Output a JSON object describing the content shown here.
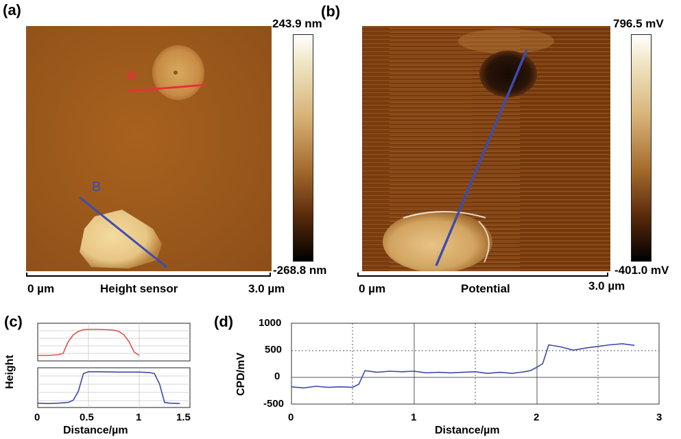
{
  "panels": {
    "a": {
      "label": "(a)",
      "colorbar_max": "243.9 nm",
      "colorbar_min": "-268.8 nm",
      "scale_left": "0 µm",
      "scale_center": "Height sensor",
      "scale_right": "3.0 µm",
      "line_a_label": "A",
      "line_b_label": "B"
    },
    "b": {
      "label": "(b)",
      "colorbar_max": "796.5 mV",
      "colorbar_min": "-401.0 mV",
      "scale_left": "0 µm",
      "scale_center": "Potential",
      "scale_right": "3.0 µm"
    },
    "c": {
      "label": "(c)",
      "ylabel": "Height",
      "xlabel": "Distance/µm",
      "xticks": [
        "0",
        "0.5",
        "1",
        "1.5"
      ]
    },
    "d": {
      "label": "(d)",
      "ylabel": "CPD/mV",
      "xlabel": "Distance/µm",
      "xticks": [
        "0",
        "1",
        "2",
        "3"
      ],
      "yticks": [
        "1000",
        "500",
        "0",
        "-500"
      ]
    }
  },
  "colors": {
    "line_a": "#e8303a",
    "line_b": "#3a4db0",
    "profile_red": "#e2504f",
    "profile_blue": "#3a48a8"
  },
  "chart_data": [
    {
      "type": "line",
      "xlabel": "Distance/µm",
      "ylabel": "Height",
      "xlim": [
        0,
        1.5
      ],
      "series": [
        {
          "x": [
            0.0,
            0.1,
            0.2,
            0.25,
            0.3,
            0.35,
            0.4,
            0.45,
            0.5,
            0.6,
            0.7,
            0.75,
            0.8,
            0.85,
            0.9,
            0.95,
            1.0
          ],
          "values": [
            0.1,
            0.1,
            0.12,
            0.16,
            0.5,
            0.7,
            0.8,
            0.85,
            0.86,
            0.86,
            0.85,
            0.84,
            0.8,
            0.7,
            0.5,
            0.2,
            0.1
          ]
        },
        {
          "x": [
            0.0,
            0.1,
            0.2,
            0.3,
            0.35,
            0.4,
            0.45,
            0.5,
            0.6,
            0.8,
            1.0,
            1.1,
            1.15,
            1.2,
            1.25,
            1.3,
            1.4
          ],
          "values": [
            0.08,
            0.07,
            0.08,
            0.1,
            0.16,
            0.4,
            0.88,
            0.93,
            0.93,
            0.92,
            0.92,
            0.91,
            0.88,
            0.6,
            0.1,
            0.08,
            0.07
          ]
        }
      ]
    },
    {
      "type": "line",
      "xlabel": "Distance/µm",
      "ylabel": "CPD/mV",
      "xlim": [
        0,
        3
      ],
      "ylim": [
        -500,
        1000
      ],
      "grid": true,
      "series": [
        {
          "x": [
            0.0,
            0.1,
            0.2,
            0.3,
            0.4,
            0.5,
            0.55,
            0.6,
            0.7,
            0.8,
            0.9,
            1.0,
            1.1,
            1.2,
            1.3,
            1.4,
            1.5,
            1.6,
            1.7,
            1.8,
            1.9,
            1.95,
            2.0,
            2.05,
            2.1,
            2.2,
            2.3,
            2.4,
            2.5,
            2.6,
            2.7,
            2.8
          ],
          "values": [
            -180,
            -200,
            -170,
            -190,
            -180,
            -190,
            -130,
            120,
            90,
            110,
            100,
            110,
            80,
            90,
            80,
            90,
            100,
            70,
            90,
            70,
            100,
            120,
            180,
            250,
            600,
            560,
            500,
            540,
            570,
            600,
            620,
            590
          ]
        }
      ]
    }
  ]
}
